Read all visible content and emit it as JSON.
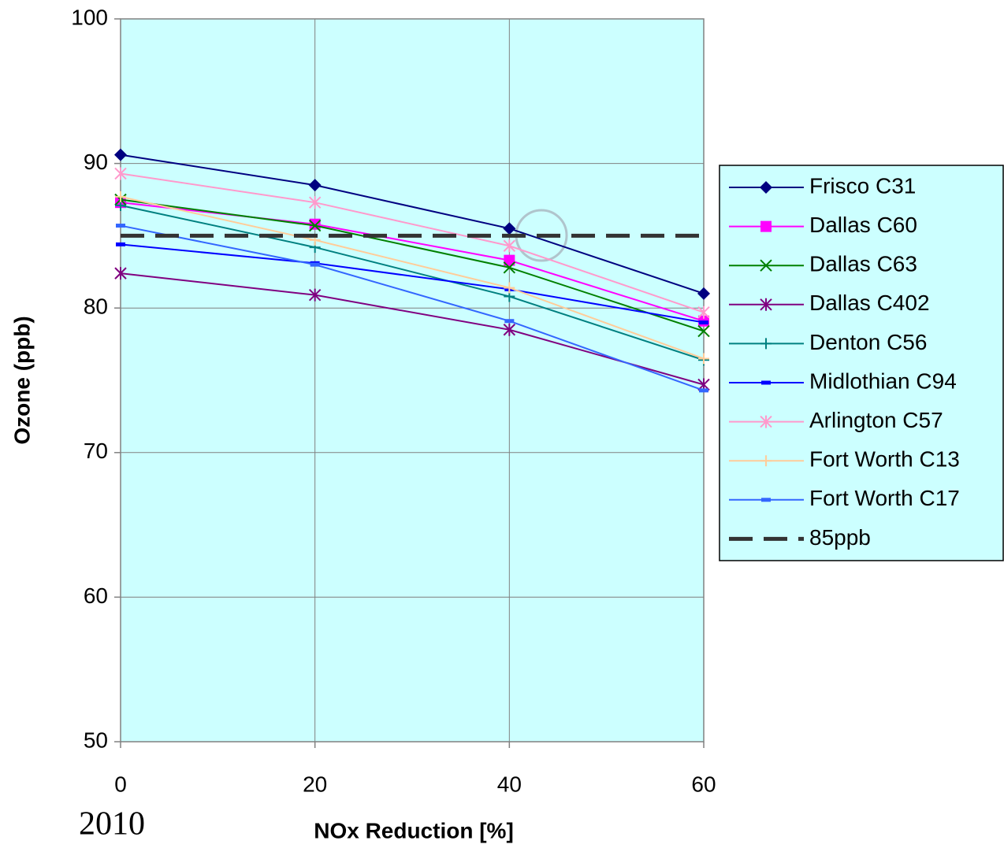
{
  "chart_data": {
    "type": "line",
    "x_label": "NOx Reduction [%]",
    "y_label": "Ozone (ppb)",
    "annotation": "2010",
    "x": [
      0,
      20,
      40,
      60
    ],
    "xlim": [
      0,
      60
    ],
    "xticks": [
      0,
      20,
      40,
      60
    ],
    "ylim": [
      50,
      100
    ],
    "yticks": [
      50,
      60,
      70,
      80,
      90,
      100
    ],
    "grid": true,
    "legend": "right",
    "background": "#ccffff",
    "series": [
      {
        "name": "Frisco C31",
        "color": "#000080",
        "marker": "diamond",
        "values": [
          90.6,
          88.5,
          85.5,
          81.0
        ]
      },
      {
        "name": "Dallas C60",
        "color": "#ff00ff",
        "marker": "square",
        "values": [
          87.3,
          85.8,
          83.3,
          79.1
        ]
      },
      {
        "name": "Dallas C63",
        "color": "#008000",
        "marker": "x",
        "values": [
          87.5,
          85.7,
          82.8,
          78.4
        ]
      },
      {
        "name": "Dallas C402",
        "color": "#800080",
        "marker": "star",
        "values": [
          82.4,
          80.9,
          78.5,
          74.7
        ]
      },
      {
        "name": "Denton C56",
        "color": "#008080",
        "marker": "plus",
        "values": [
          87.1,
          84.2,
          80.8,
          76.4
        ]
      },
      {
        "name": "Midlothian C94",
        "color": "#0000ff",
        "marker": "dash",
        "values": [
          84.4,
          83.1,
          81.3,
          79.0
        ]
      },
      {
        "name": "Arlington C57",
        "color": "#ff99cc",
        "marker": "star",
        "values": [
          89.3,
          87.3,
          84.3,
          79.7
        ]
      },
      {
        "name": "Fort Worth C13",
        "color": "#ffcc99",
        "marker": "plus",
        "values": [
          87.7,
          84.7,
          81.4,
          76.5
        ]
      },
      {
        "name": "Fort Worth C17",
        "color": "#3366ff",
        "marker": "dash",
        "values": [
          85.7,
          83.0,
          79.1,
          74.3
        ]
      },
      {
        "name": "85ppb",
        "color": "#333333",
        "marker": "none",
        "dashed": true,
        "values": [
          85,
          85,
          85,
          85
        ]
      }
    ]
  }
}
